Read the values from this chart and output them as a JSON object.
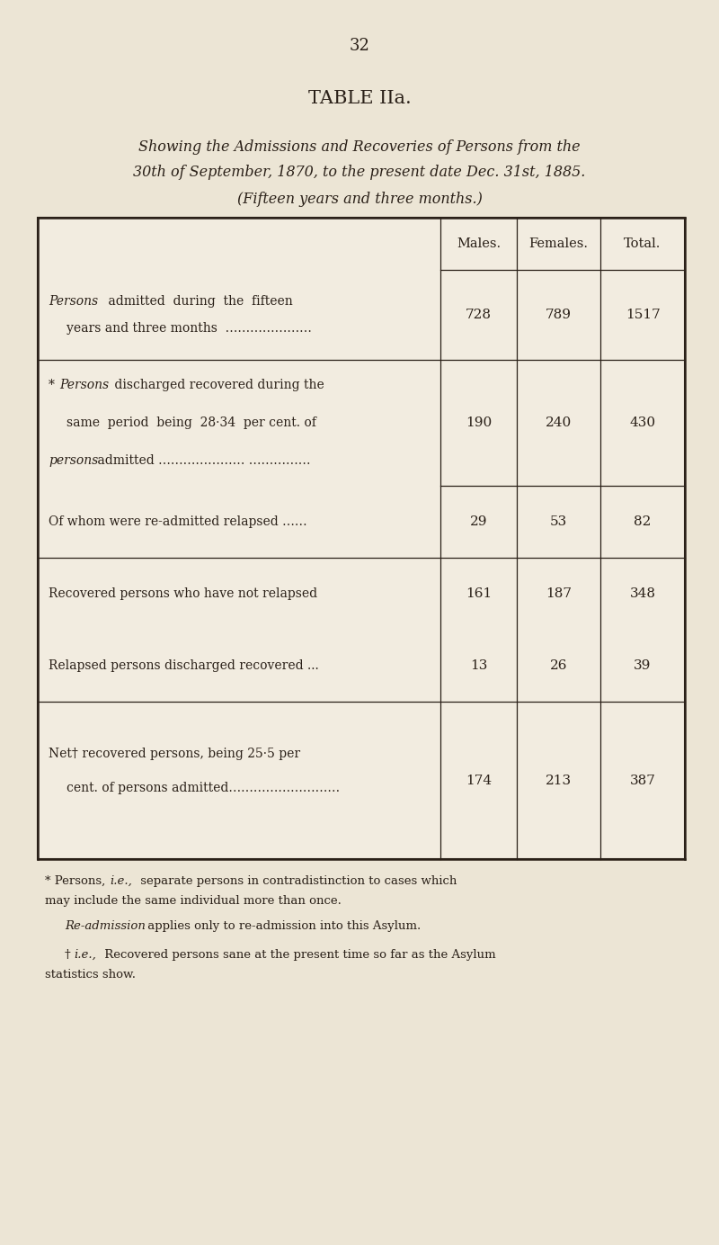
{
  "page_number": "32",
  "title": "TABLE IIa.",
  "subtitle_line1": "Showing the Admissions and Recoveries of Persons from the",
  "subtitle_line2": "30th of September, 1870, to the present date Dec. 31st, 1885.",
  "subtitle_line3": "(Fifteen years and three months.)",
  "col_headers": [
    "Males.",
    "Females.",
    "Total."
  ],
  "bg_color": "#ece5d5",
  "text_color": "#2a2018",
  "table_bg": "#f2ece0"
}
